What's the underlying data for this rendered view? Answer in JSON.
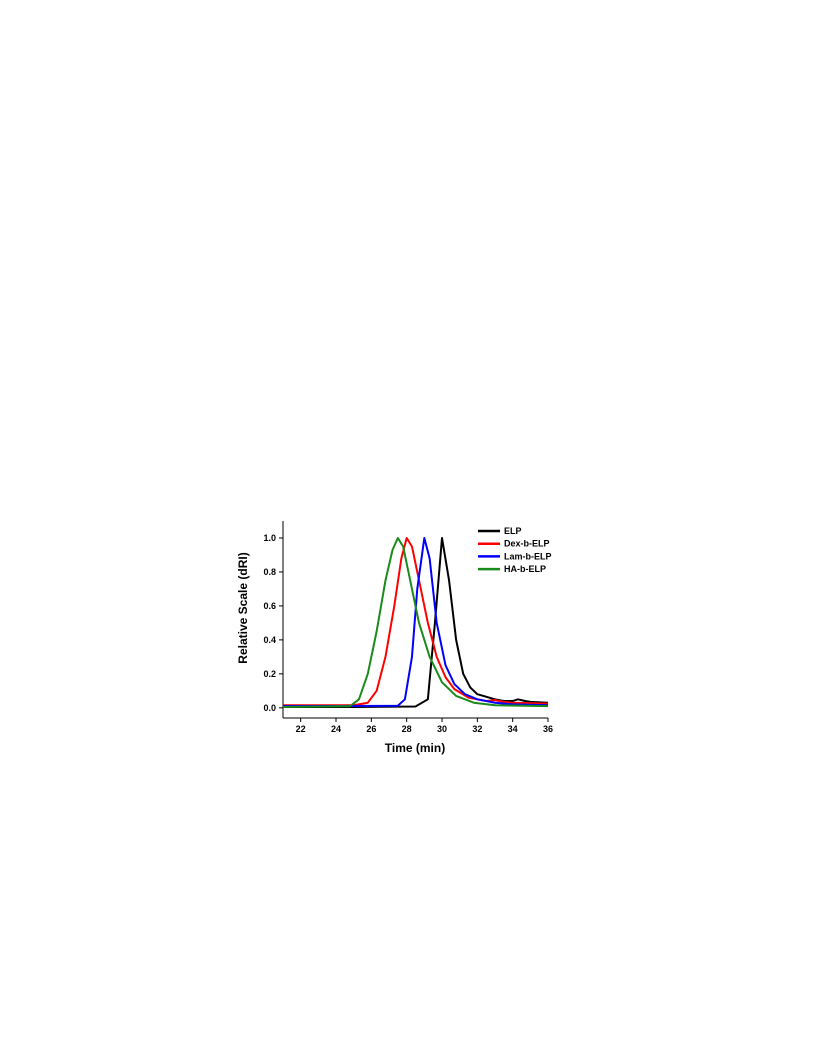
{
  "chart_data": {
    "type": "line",
    "xlabel": "Time (min)",
    "ylabel": "Relative Scale (dRI)",
    "xlim": [
      21,
      36
    ],
    "xticks": [
      22,
      24,
      26,
      28,
      30,
      32,
      34,
      36
    ],
    "ylim": [
      -0.06,
      1.1
    ],
    "yticks": [
      {
        "value": 0,
        "label": "0.0"
      },
      0.2,
      0.4,
      0.6,
      0.8,
      {
        "value": 1,
        "label": "1.0"
      }
    ],
    "legend": "upper right",
    "series": [
      {
        "name": "ELP",
        "color": "#000000",
        "x": [
          21,
          25,
          28.5,
          29.2,
          29.6,
          30.0,
          30.4,
          30.8,
          31.2,
          31.6,
          32,
          33,
          33.5,
          34,
          34.3,
          34.7,
          35,
          36
        ],
        "values": [
          0.005,
          0.005,
          0.008,
          0.05,
          0.5,
          1.0,
          0.75,
          0.4,
          0.2,
          0.12,
          0.08,
          0.05,
          0.04,
          0.04,
          0.05,
          0.04,
          0.035,
          0.03
        ]
      },
      {
        "name": "Dex-b-ELP",
        "color": "#ff0000",
        "x": [
          21,
          25,
          25.8,
          26.3,
          26.8,
          27.3,
          27.7,
          28.0,
          28.3,
          28.7,
          29.2,
          29.7,
          30.2,
          30.7,
          31.5,
          32.5,
          33,
          33.5,
          34,
          36
        ],
        "values": [
          0.015,
          0.015,
          0.03,
          0.1,
          0.3,
          0.6,
          0.88,
          1.0,
          0.95,
          0.75,
          0.5,
          0.3,
          0.18,
          0.11,
          0.06,
          0.04,
          0.045,
          0.035,
          0.03,
          0.025
        ]
      },
      {
        "name": "Lam-b-ELP",
        "color": "#0000ff",
        "x": [
          21,
          27.5,
          27.9,
          28.3,
          28.6,
          29.0,
          29.3,
          29.7,
          30.2,
          30.7,
          31.3,
          32,
          33,
          34,
          36
        ],
        "values": [
          0.01,
          0.012,
          0.05,
          0.3,
          0.7,
          1.0,
          0.88,
          0.5,
          0.25,
          0.14,
          0.08,
          0.05,
          0.03,
          0.02,
          0.015
        ]
      },
      {
        "name": "HA-b-ELP",
        "color": "#1a8a1a",
        "x": [
          21,
          24.8,
          25.3,
          25.8,
          26.3,
          26.8,
          27.2,
          27.5,
          27.8,
          28.2,
          28.7,
          29.3,
          30,
          30.8,
          31.8,
          33,
          36
        ],
        "values": [
          0.005,
          0.01,
          0.05,
          0.2,
          0.45,
          0.75,
          0.93,
          1.0,
          0.95,
          0.75,
          0.5,
          0.3,
          0.15,
          0.07,
          0.03,
          0.015,
          0.01
        ]
      }
    ]
  }
}
